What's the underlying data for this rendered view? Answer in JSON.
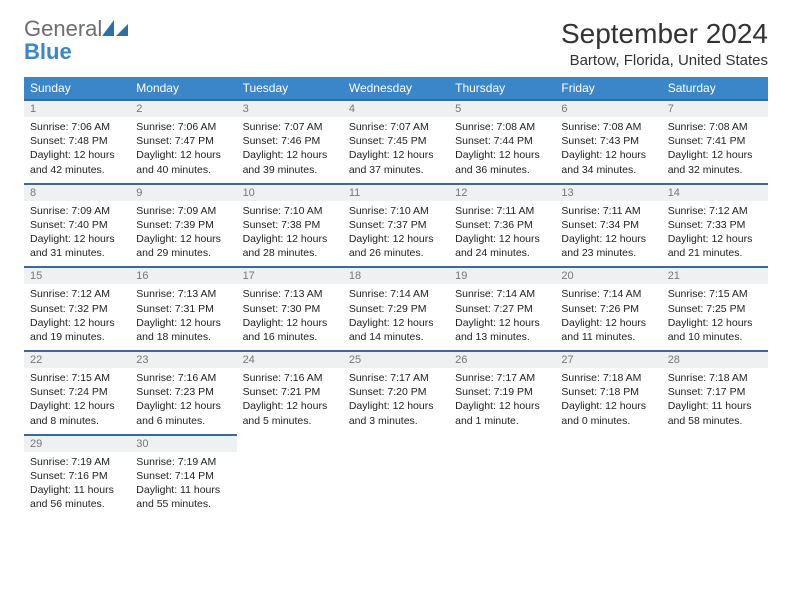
{
  "logo": {
    "word1": "General",
    "word2": "Blue"
  },
  "title": "September 2024",
  "location": "Bartow, Florida, United States",
  "colors": {
    "header_bg": "#3a86c8",
    "row_divider": "#3a6a9a",
    "daynum_bg": "#eef0f2",
    "text": "#222222"
  },
  "weekdays": [
    "Sunday",
    "Monday",
    "Tuesday",
    "Wednesday",
    "Thursday",
    "Friday",
    "Saturday"
  ],
  "weeks": [
    [
      {
        "n": 1,
        "rise": "7:06 AM",
        "set": "7:48 PM",
        "dl": "12 hours and 42 minutes."
      },
      {
        "n": 2,
        "rise": "7:06 AM",
        "set": "7:47 PM",
        "dl": "12 hours and 40 minutes."
      },
      {
        "n": 3,
        "rise": "7:07 AM",
        "set": "7:46 PM",
        "dl": "12 hours and 39 minutes."
      },
      {
        "n": 4,
        "rise": "7:07 AM",
        "set": "7:45 PM",
        "dl": "12 hours and 37 minutes."
      },
      {
        "n": 5,
        "rise": "7:08 AM",
        "set": "7:44 PM",
        "dl": "12 hours and 36 minutes."
      },
      {
        "n": 6,
        "rise": "7:08 AM",
        "set": "7:43 PM",
        "dl": "12 hours and 34 minutes."
      },
      {
        "n": 7,
        "rise": "7:08 AM",
        "set": "7:41 PM",
        "dl": "12 hours and 32 minutes."
      }
    ],
    [
      {
        "n": 8,
        "rise": "7:09 AM",
        "set": "7:40 PM",
        "dl": "12 hours and 31 minutes."
      },
      {
        "n": 9,
        "rise": "7:09 AM",
        "set": "7:39 PM",
        "dl": "12 hours and 29 minutes."
      },
      {
        "n": 10,
        "rise": "7:10 AM",
        "set": "7:38 PM",
        "dl": "12 hours and 28 minutes."
      },
      {
        "n": 11,
        "rise": "7:10 AM",
        "set": "7:37 PM",
        "dl": "12 hours and 26 minutes."
      },
      {
        "n": 12,
        "rise": "7:11 AM",
        "set": "7:36 PM",
        "dl": "12 hours and 24 minutes."
      },
      {
        "n": 13,
        "rise": "7:11 AM",
        "set": "7:34 PM",
        "dl": "12 hours and 23 minutes."
      },
      {
        "n": 14,
        "rise": "7:12 AM",
        "set": "7:33 PM",
        "dl": "12 hours and 21 minutes."
      }
    ],
    [
      {
        "n": 15,
        "rise": "7:12 AM",
        "set": "7:32 PM",
        "dl": "12 hours and 19 minutes."
      },
      {
        "n": 16,
        "rise": "7:13 AM",
        "set": "7:31 PM",
        "dl": "12 hours and 18 minutes."
      },
      {
        "n": 17,
        "rise": "7:13 AM",
        "set": "7:30 PM",
        "dl": "12 hours and 16 minutes."
      },
      {
        "n": 18,
        "rise": "7:14 AM",
        "set": "7:29 PM",
        "dl": "12 hours and 14 minutes."
      },
      {
        "n": 19,
        "rise": "7:14 AM",
        "set": "7:27 PM",
        "dl": "12 hours and 13 minutes."
      },
      {
        "n": 20,
        "rise": "7:14 AM",
        "set": "7:26 PM",
        "dl": "12 hours and 11 minutes."
      },
      {
        "n": 21,
        "rise": "7:15 AM",
        "set": "7:25 PM",
        "dl": "12 hours and 10 minutes."
      }
    ],
    [
      {
        "n": 22,
        "rise": "7:15 AM",
        "set": "7:24 PM",
        "dl": "12 hours and 8 minutes."
      },
      {
        "n": 23,
        "rise": "7:16 AM",
        "set": "7:23 PM",
        "dl": "12 hours and 6 minutes."
      },
      {
        "n": 24,
        "rise": "7:16 AM",
        "set": "7:21 PM",
        "dl": "12 hours and 5 minutes."
      },
      {
        "n": 25,
        "rise": "7:17 AM",
        "set": "7:20 PM",
        "dl": "12 hours and 3 minutes."
      },
      {
        "n": 26,
        "rise": "7:17 AM",
        "set": "7:19 PM",
        "dl": "12 hours and 1 minute."
      },
      {
        "n": 27,
        "rise": "7:18 AM",
        "set": "7:18 PM",
        "dl": "12 hours and 0 minutes."
      },
      {
        "n": 28,
        "rise": "7:18 AM",
        "set": "7:17 PM",
        "dl": "11 hours and 58 minutes."
      }
    ],
    [
      {
        "n": 29,
        "rise": "7:19 AM",
        "set": "7:16 PM",
        "dl": "11 hours and 56 minutes."
      },
      {
        "n": 30,
        "rise": "7:19 AM",
        "set": "7:14 PM",
        "dl": "11 hours and 55 minutes."
      },
      null,
      null,
      null,
      null,
      null
    ]
  ]
}
